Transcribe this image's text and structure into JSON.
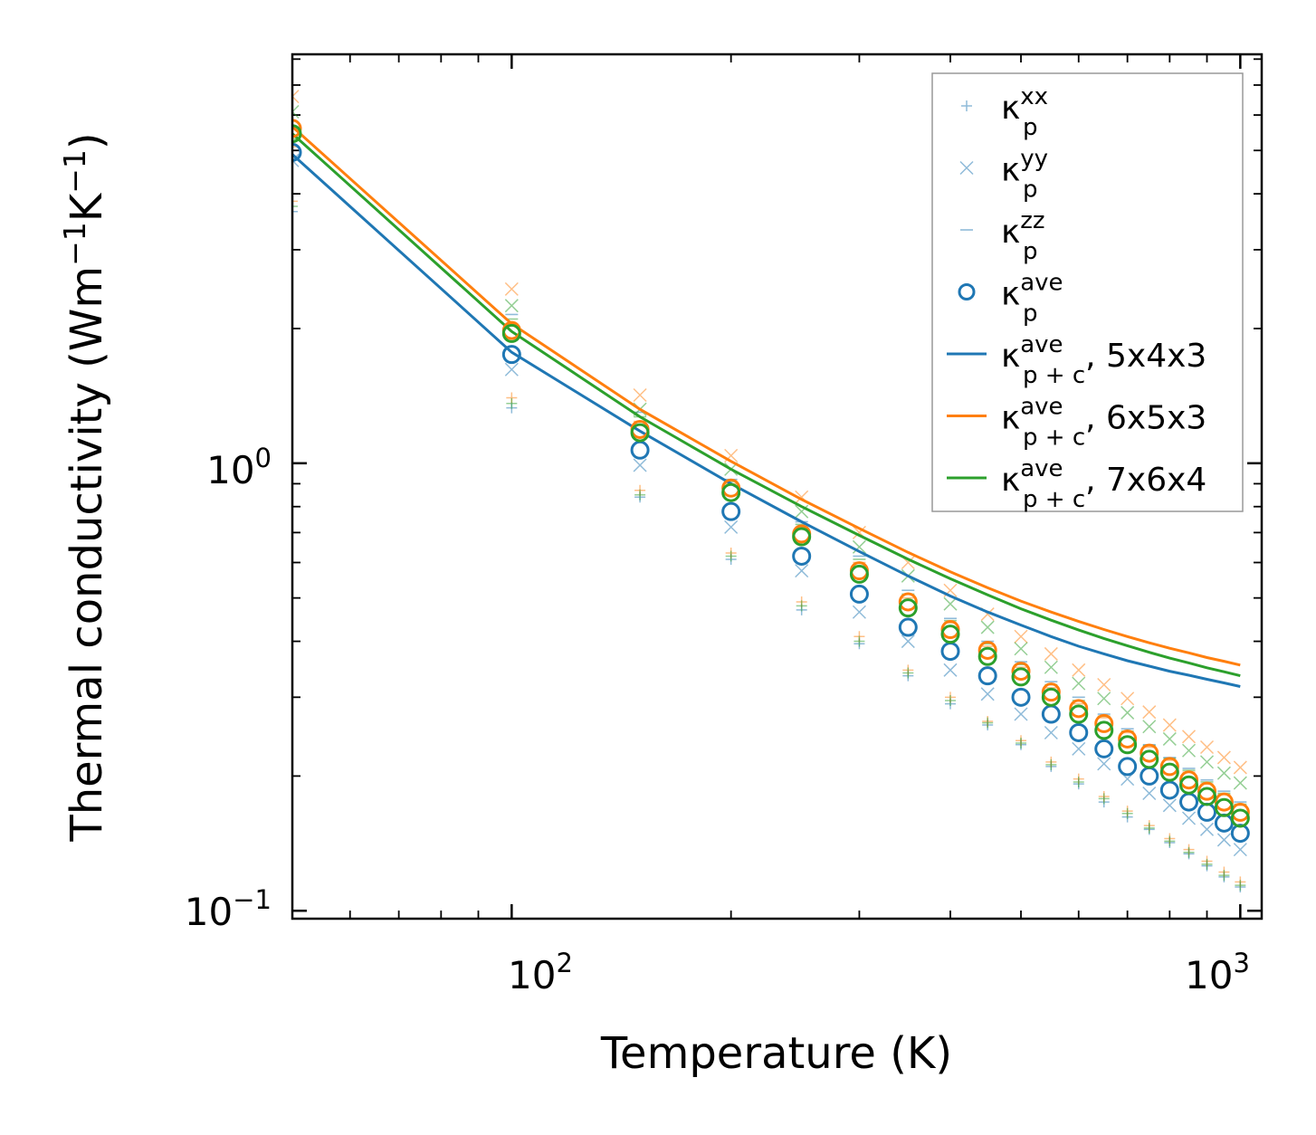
{
  "chart_data": {
    "type": "scatter",
    "xscale": "log",
    "yscale": "log",
    "xlabel": "Temperature (K)",
    "ylabel": "Thermal conductivity (Wm",
    "ylabel_sup1": "−1",
    "ylabel_mid": "K",
    "ylabel_sup2": "−1",
    "ylabel_end": ")",
    "xlim": [
      50,
      1070
    ],
    "ylim": [
      0.096,
      8.2
    ],
    "xticks": [
      {
        "value": 100,
        "base": "10",
        "exp": "2"
      },
      {
        "value": 1000,
        "base": "10",
        "exp": "3"
      }
    ],
    "yticks": [
      {
        "value": 0.1,
        "base": "10",
        "exp": "−1"
      },
      {
        "value": 1,
        "base": "10",
        "exp": "0"
      }
    ],
    "temperatures": [
      50,
      100,
      150,
      200,
      250,
      300,
      350,
      400,
      450,
      500,
      550,
      600,
      650,
      700,
      750,
      800,
      850,
      900,
      950,
      1000
    ],
    "legend_position": "top-right",
    "legend": [
      {
        "sym": "κ",
        "sup": "xx",
        "sub": "p",
        "suffix": "",
        "marker": "plus"
      },
      {
        "sym": "κ",
        "sup": "yy",
        "sub": "p",
        "suffix": "",
        "marker": "x"
      },
      {
        "sym": "κ",
        "sup": "zz",
        "sub": "p",
        "suffix": "",
        "marker": "dash"
      },
      {
        "sym": "κ",
        "sup": "ave",
        "sub": "p",
        "suffix": "",
        "marker": "circle"
      },
      {
        "sym": "κ",
        "sup": "ave",
        "sub": "p + c",
        "suffix": ", 5x4x3",
        "marker": "line",
        "color": "#1f77b4"
      },
      {
        "sym": "κ",
        "sup": "ave",
        "sub": "p + c",
        "suffix": ", 6x5x3",
        "marker": "line",
        "color": "#ff7f0e"
      },
      {
        "sym": "κ",
        "sup": "ave",
        "sub": "p + c",
        "suffix": ", 7x6x4",
        "marker": "line",
        "color": "#2ca02c"
      }
    ],
    "series": [
      {
        "name": "5x4x3",
        "color": "#1f77b4",
        "kappa_p_ave": [
          4.95,
          1.75,
          1.07,
          0.78,
          0.62,
          0.51,
          0.43,
          0.38,
          0.335,
          0.3,
          0.275,
          0.25,
          0.23,
          0.21,
          0.2,
          0.186,
          0.175,
          0.166,
          0.157,
          0.149
        ],
        "kappa_p_xx": [
          3.65,
          1.33,
          0.84,
          0.61,
          0.47,
          0.395,
          0.335,
          0.29,
          0.26,
          0.235,
          0.21,
          0.192,
          0.175,
          0.162,
          0.152,
          0.142,
          0.134,
          0.126,
          0.119,
          0.113
        ],
        "kappa_p_yy": [
          4.75,
          1.62,
          0.99,
          0.72,
          0.575,
          0.465,
          0.4,
          0.345,
          0.305,
          0.275,
          0.25,
          0.23,
          0.213,
          0.197,
          0.183,
          0.172,
          0.161,
          0.152,
          0.144,
          0.137
        ],
        "kappa_p_zz": [
          5.6,
          2.15,
          1.3,
          0.92,
          0.74,
          0.62,
          0.52,
          0.45,
          0.4,
          0.36,
          0.325,
          0.3,
          0.275,
          0.255,
          0.235,
          0.22,
          0.208,
          0.196,
          0.185,
          0.175
        ],
        "kappa_p_c": [
          4.9,
          1.77,
          1.18,
          0.9,
          0.74,
          0.635,
          0.56,
          0.505,
          0.465,
          0.435,
          0.41,
          0.39,
          0.375,
          0.362,
          0.352,
          0.343,
          0.336,
          0.329,
          0.323,
          0.317
        ]
      },
      {
        "name": "6x5x3",
        "color": "#ff7f0e",
        "kappa_p_ave": [
          5.6,
          1.98,
          1.19,
          0.88,
          0.695,
          0.575,
          0.49,
          0.425,
          0.382,
          0.343,
          0.308,
          0.283,
          0.262,
          0.242,
          0.225,
          0.21,
          0.196,
          0.185,
          0.175,
          0.166
        ],
        "kappa_p_xx": [
          3.85,
          1.4,
          0.87,
          0.63,
          0.49,
          0.41,
          0.345,
          0.3,
          0.265,
          0.24,
          0.215,
          0.197,
          0.18,
          0.167,
          0.155,
          0.145,
          0.137,
          0.129,
          0.122,
          0.116
        ],
        "kappa_p_yy": [
          6.6,
          2.45,
          1.42,
          1.04,
          0.84,
          0.7,
          0.6,
          0.52,
          0.46,
          0.41,
          0.375,
          0.345,
          0.32,
          0.298,
          0.278,
          0.26,
          0.245,
          0.232,
          0.22,
          0.209
        ],
        "kappa_p_zz": [
          5.1,
          2.05,
          1.24,
          0.9,
          0.72,
          0.6,
          0.5,
          0.44,
          0.39,
          0.35,
          0.315,
          0.29,
          0.27,
          0.25,
          0.232,
          0.217,
          0.204,
          0.192,
          0.182,
          0.172
        ],
        "kappa_p_c": [
          5.65,
          2.05,
          1.32,
          1.01,
          0.83,
          0.715,
          0.632,
          0.572,
          0.527,
          0.492,
          0.465,
          0.443,
          0.425,
          0.41,
          0.397,
          0.386,
          0.377,
          0.368,
          0.361,
          0.354
        ]
      },
      {
        "name": "7x6x4",
        "color": "#2ca02c",
        "kappa_p_ave": [
          5.45,
          1.95,
          1.17,
          0.86,
          0.685,
          0.565,
          0.475,
          0.415,
          0.37,
          0.333,
          0.3,
          0.275,
          0.253,
          0.235,
          0.218,
          0.204,
          0.191,
          0.18,
          0.17,
          0.161
        ],
        "kappa_p_xx": [
          3.75,
          1.36,
          0.85,
          0.62,
          0.48,
          0.4,
          0.34,
          0.295,
          0.263,
          0.237,
          0.212,
          0.194,
          0.178,
          0.165,
          0.153,
          0.143,
          0.135,
          0.127,
          0.12,
          0.114
        ],
        "kappa_p_yy": [
          6.1,
          2.25,
          1.32,
          0.97,
          0.78,
          0.65,
          0.56,
          0.485,
          0.43,
          0.385,
          0.35,
          0.322,
          0.298,
          0.277,
          0.258,
          0.242,
          0.228,
          0.215,
          0.203,
          0.193
        ],
        "kappa_p_zz": [
          5.3,
          2.1,
          1.27,
          0.91,
          0.73,
          0.61,
          0.51,
          0.445,
          0.395,
          0.355,
          0.32,
          0.295,
          0.272,
          0.252,
          0.234,
          0.219,
          0.206,
          0.194,
          0.183,
          0.173
        ],
        "kappa_p_c": [
          5.45,
          1.97,
          1.27,
          0.97,
          0.8,
          0.69,
          0.61,
          0.552,
          0.508,
          0.473,
          0.446,
          0.424,
          0.406,
          0.391,
          0.378,
          0.367,
          0.358,
          0.349,
          0.342,
          0.335
        ]
      }
    ]
  }
}
